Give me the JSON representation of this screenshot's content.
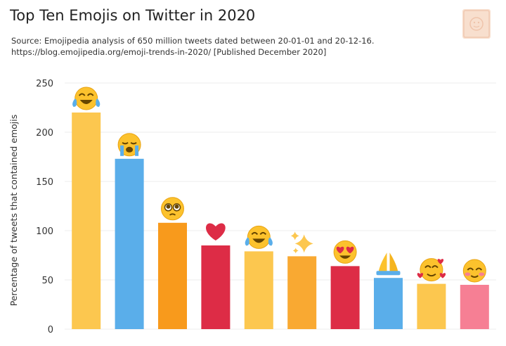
{
  "header": {
    "title": "Top Ten Emojis on Twitter in 2020",
    "source_line1": "Source: Emojipedia analysis of 650 million tweets dated between 20-01-01 and 20-12-16.",
    "source_line2": "https://blog.emojipedia.org/emoji-trends-in-2020/ [Published December 2020]"
  },
  "logo": {
    "icon": "emojipedia-book-logo-icon",
    "color": "#f7d9c6"
  },
  "chart_data": {
    "type": "bar",
    "title": "Top Ten Emojis on Twitter in 2020",
    "xlabel": "",
    "ylabel": "Percentage of tweets that contained emojis",
    "ylim": [
      0,
      250
    ],
    "yticks": [
      0,
      50,
      100,
      150,
      200,
      250
    ],
    "grid": true,
    "legend": "none",
    "categories": [
      "face-with-tears-of-joy",
      "loudly-crying-face",
      "pleading-face",
      "red-heart",
      "rolling-on-the-floor-laughing",
      "sparkles",
      "smiling-face-with-heart-eyes",
      "folded-hands",
      "smiling-face-with-hearts",
      "smiling-face-with-smiling-eyes"
    ],
    "values": [
      220,
      173,
      108,
      85,
      79,
      74,
      64,
      52,
      46,
      45
    ],
    "colors": [
      "#fcc74f",
      "#5aaeea",
      "#f89a1c",
      "#dd2c46",
      "#fcc74f",
      "#f9a932",
      "#dd2c46",
      "#5aaeea",
      "#fcc74f",
      "#f67f94"
    ]
  }
}
